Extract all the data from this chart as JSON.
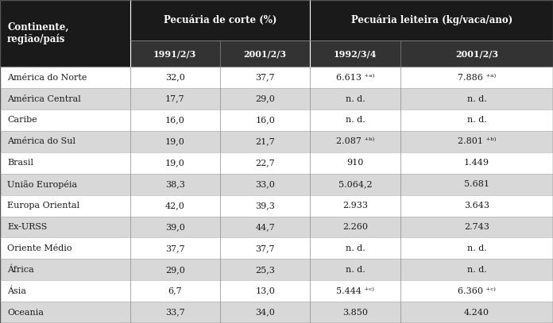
{
  "col_header_row2": [
    "",
    "1991/2/3",
    "2001/2/3",
    "1992/3/4",
    "2001/2/3"
  ],
  "rows": [
    [
      "América do Norte",
      "32,0",
      "37,7",
      "6.613 ⁺ᵃ⁾",
      "7.886 ⁺ᵃ⁾"
    ],
    [
      "América Central",
      "17,7",
      "29,0",
      "n. d.",
      "n. d."
    ],
    [
      "Caribe",
      "16,0",
      "16,0",
      "n. d.",
      "n. d."
    ],
    [
      "América do Sul",
      "19,0",
      "21,7",
      "2.087 ⁺ᵇ⁾",
      "2.801 ⁺ᵇ⁾"
    ],
    [
      "Brasil",
      "19,0",
      "22,7",
      "910",
      "1.449"
    ],
    [
      "União Européia",
      "38,3",
      "33,0",
      "5.064,2",
      "5.681"
    ],
    [
      "Europa Oriental",
      "42,0",
      "39,3",
      "2.933",
      "3.643"
    ],
    [
      "Ex-URSS",
      "39,0",
      "44,7",
      "2.260",
      "2.743"
    ],
    [
      "Oriente Médio",
      "37,7",
      "37,7",
      "n. d.",
      "n. d."
    ],
    [
      "África",
      "29,0",
      "25,3",
      "n. d.",
      "n. d."
    ],
    [
      "Ásia",
      "6,7",
      "13,0",
      "5.444 ⁺ᶜ⁾",
      "6.360 ⁺ᶜ⁾"
    ],
    [
      "Oceania",
      "33,7",
      "34,0",
      "3.850",
      "4.240"
    ]
  ],
  "header_bg": "#1a1a1a",
  "header_fg": "#ffffff",
  "subheader_bg": "#333333",
  "subheader_fg": "#ffffff",
  "row_bg_even": "#d8d8d8",
  "row_bg_odd": "#ffffff",
  "text_color": "#1a1a1a",
  "fig_bg": "#ffffff",
  "header1_label_left": "Continente,\nregião/país",
  "header1_label_mid": "Pecuária de corte (%)",
  "header1_label_right": "Pecuária leiteira (kg/vaca/ano)"
}
